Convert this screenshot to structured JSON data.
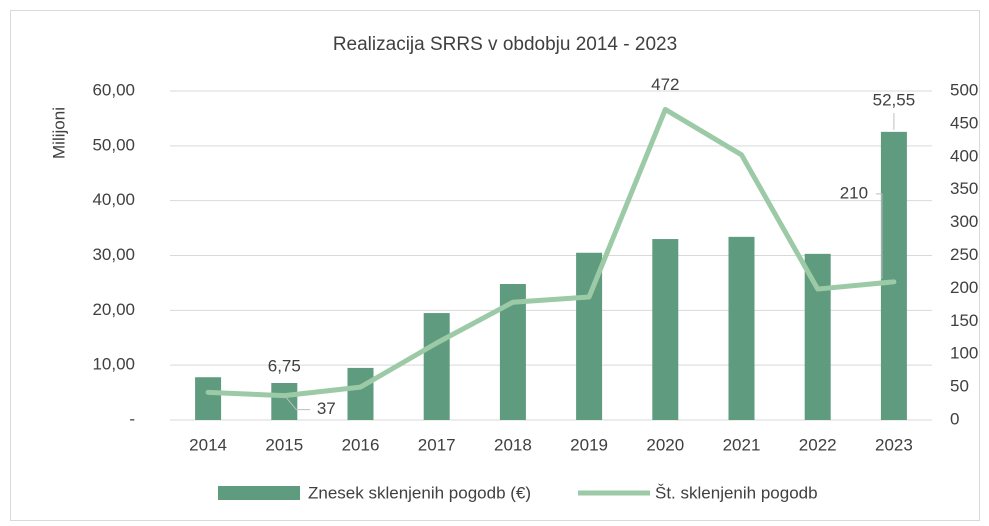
{
  "chart_data": {
    "type": "bar-line",
    "title": "Realizacija SRRS v obdobju 2014 - 2023",
    "y_label": "Milijoni",
    "categories": [
      "2014",
      "2015",
      "2016",
      "2017",
      "2018",
      "2019",
      "2020",
      "2021",
      "2022",
      "2023"
    ],
    "series": [
      {
        "name": "Znesek sklenjenih pogodb (€)",
        "type": "bar",
        "color": "#5f9b7e",
        "values": [
          7.8,
          6.75,
          9.5,
          19.5,
          24.8,
          30.5,
          33.0,
          33.4,
          30.3,
          52.55
        ],
        "value_labels": [
          null,
          "6,75",
          null,
          null,
          null,
          null,
          null,
          null,
          null,
          "52,55"
        ]
      },
      {
        "name": "Št. sklenjenih pogodb",
        "type": "line",
        "axis": "y2",
        "color": "#9ccaa6",
        "values": [
          42,
          37,
          50,
          117,
          179,
          187,
          472,
          403,
          199,
          210
        ],
        "value_labels": [
          null,
          "37",
          null,
          null,
          null,
          null,
          "472",
          null,
          null,
          "210"
        ]
      }
    ],
    "ylim": [
      0,
      60
    ],
    "yticks": [
      {
        "value": 0,
        "label": "-"
      },
      {
        "value": 10,
        "label": "10,00"
      },
      {
        "value": 20,
        "label": "20,00"
      },
      {
        "value": 30,
        "label": "30,00"
      },
      {
        "value": 40,
        "label": "40,00"
      },
      {
        "value": 50,
        "label": "50,00"
      },
      {
        "value": 60,
        "label": "60,00"
      }
    ],
    "y2lim": [
      0,
      500
    ],
    "y2ticks": [
      0,
      50,
      100,
      150,
      200,
      250,
      300,
      350,
      400,
      450,
      500
    ],
    "grid": true,
    "legend": "bottom"
  }
}
